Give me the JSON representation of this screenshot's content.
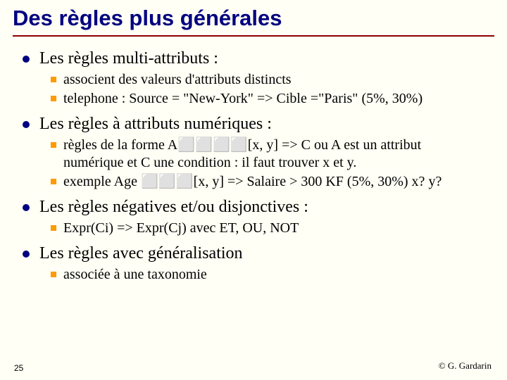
{
  "title": "Des règles plus générales",
  "sections": [
    {
      "heading": "Les règles multi-attributs :",
      "items": [
        "associent des valeurs d'attributs distincts",
        "telephone : Source = \"New-York\" => Cible =\"Paris\" (5%, 30%)"
      ]
    },
    {
      "heading": "Les règles à attributs numériques :",
      "items": [
        "règles de la forme   A⬜⬜⬜⬜[x, y] => C ou A est un attribut numérique et C une condition : il faut trouver x et y.",
        "exemple Age ⬜⬜⬜[x, y] => Salaire > 300 KF (5%, 30%) x? y?"
      ]
    },
    {
      "heading": "Les règles négatives et/ou disjonctives :",
      "items": [
        "Expr(Ci) => Expr(Cj) avec ET, OU, NOT"
      ]
    },
    {
      "heading": "Les règles avec généralisation",
      "items": [
        "associée à une taxonomie"
      ]
    }
  ],
  "pageNumber": "25",
  "copyright": "© G. Gardarin",
  "colors": {
    "background": "#fffff5",
    "titleColor": "#000080",
    "ruleColor": "#8b0000",
    "bullet1": "#000080",
    "bullet2": "#ff9a00"
  }
}
